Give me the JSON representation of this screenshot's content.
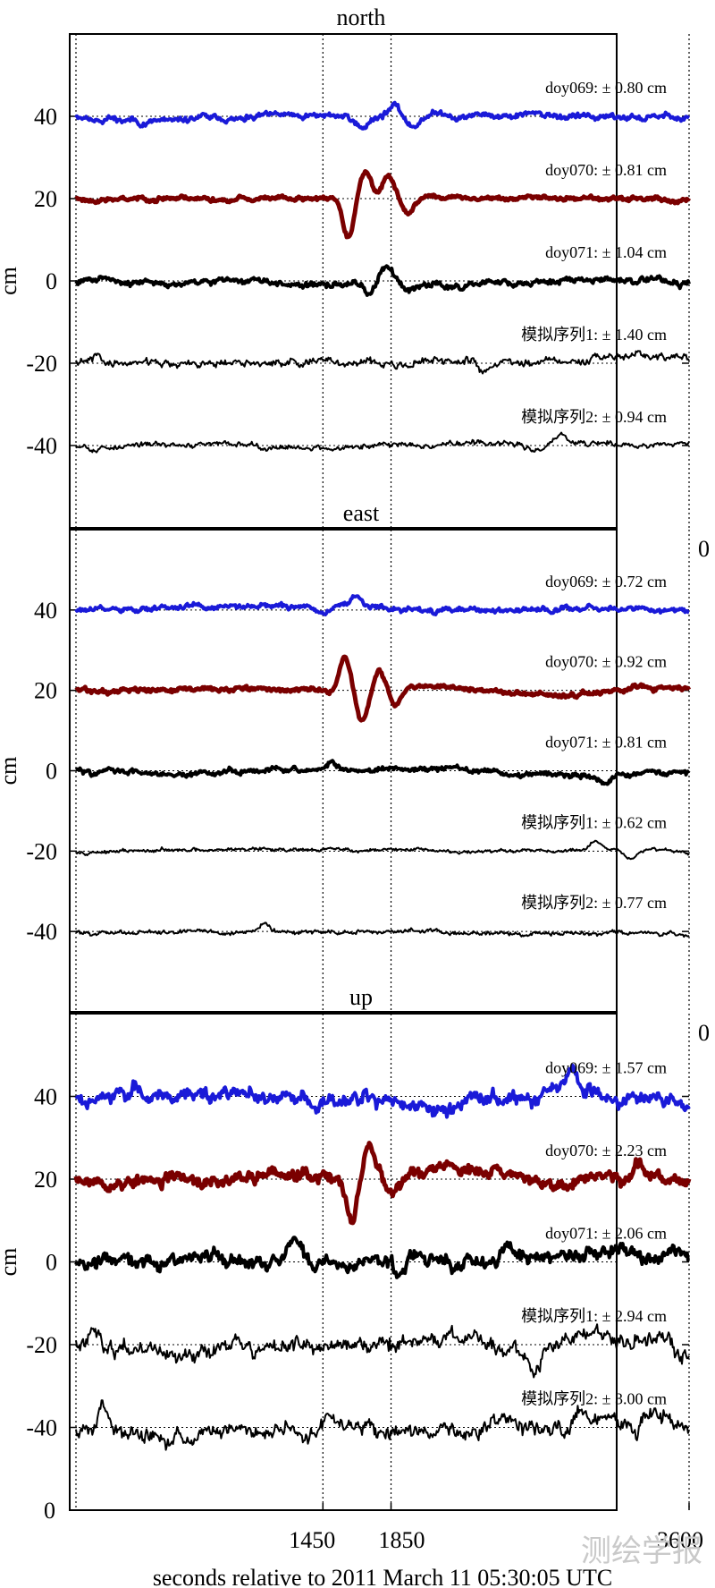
{
  "chart_data": [
    {
      "type": "line",
      "title": "north",
      "ylabel": "cm",
      "xlim": [
        0,
        3600
      ],
      "ylim": [
        -60,
        60
      ],
      "yticks": [
        40,
        20,
        0,
        -20,
        -40
      ],
      "x_ref_lines": [
        1450,
        1850
      ],
      "series": [
        {
          "name": "doy069",
          "label": "doy069: ± 0.80 cm",
          "color": "#1a1ad8",
          "offset": 40,
          "amp": 1.0,
          "width": 4,
          "seed": 11,
          "events": [
            {
              "x": 1680,
              "a": -3
            },
            {
              "x": 1860,
              "a": 3
            },
            {
              "x": 1980,
              "a": -2.5
            }
          ]
        },
        {
          "name": "doy070",
          "label": "doy070: ± 0.81 cm",
          "color": "#7a0000",
          "offset": 20,
          "amp": 0.7,
          "width": 5,
          "seed": 23,
          "events": [
            {
              "x": 1600,
              "a": -10
            },
            {
              "x": 1700,
              "a": 6
            },
            {
              "x": 1830,
              "a": 5
            },
            {
              "x": 1950,
              "a": -4
            }
          ]
        },
        {
          "name": "doy071",
          "label": "doy071: ± 1.04 cm",
          "color": "#000000",
          "offset": 0,
          "amp": 1.0,
          "width": 4,
          "seed": 31,
          "events": [
            {
              "x": 1720,
              "a": -4
            },
            {
              "x": 1820,
              "a": 3.5
            },
            {
              "x": 1950,
              "a": -2
            }
          ]
        },
        {
          "name": "模拟序列1",
          "label": "模拟序列1: ± 1.40 cm",
          "color": "#000000",
          "offset": -20,
          "amp": 1.3,
          "width": 2,
          "seed": 41,
          "events": [
            {
              "x": 120,
              "a": 2
            },
            {
              "x": 2400,
              "a": -2
            }
          ]
        },
        {
          "name": "模拟序列2",
          "label": "模拟序列2: ± 0.94 cm",
          "color": "#000000",
          "offset": -40,
          "amp": 0.9,
          "width": 2,
          "seed": 53,
          "events": [
            {
              "x": 2700,
              "a": -2
            },
            {
              "x": 2850,
              "a": 2.5
            }
          ]
        }
      ]
    },
    {
      "type": "line",
      "title": "east",
      "ylabel": "cm",
      "xlim": [
        0,
        3600
      ],
      "ylim": [
        -60,
        60
      ],
      "yticks": [
        40,
        20,
        0,
        -20,
        -40
      ],
      "x_ref_lines": [
        1450,
        1850
      ],
      "edge_label": "0",
      "series": [
        {
          "name": "doy069",
          "label": "doy069: ± 0.72 cm",
          "color": "#1a1ad8",
          "offset": 40,
          "amp": 0.9,
          "width": 4,
          "seed": 61,
          "events": [
            {
              "x": 1450,
              "a": -2
            },
            {
              "x": 1650,
              "a": 2
            }
          ]
        },
        {
          "name": "doy070",
          "label": "doy070: ± 0.92 cm",
          "color": "#7a0000",
          "offset": 20,
          "amp": 0.8,
          "width": 5,
          "seed": 71,
          "events": [
            {
              "x": 1580,
              "a": 8
            },
            {
              "x": 1680,
              "a": -8
            },
            {
              "x": 1780,
              "a": 5
            },
            {
              "x": 1880,
              "a": -4
            }
          ]
        },
        {
          "name": "doy071",
          "label": "doy071: ± 0.81 cm",
          "color": "#000000",
          "offset": 0,
          "amp": 0.9,
          "width": 4,
          "seed": 83,
          "events": [
            {
              "x": 1500,
              "a": 2
            },
            {
              "x": 3100,
              "a": -2
            }
          ]
        },
        {
          "name": "模拟序列1",
          "label": "模拟序列1: ± 0.62 cm",
          "color": "#000000",
          "offset": -20,
          "amp": 0.6,
          "width": 2,
          "seed": 97,
          "events": [
            {
              "x": 3050,
              "a": 2
            },
            {
              "x": 3250,
              "a": -2
            }
          ]
        },
        {
          "name": "模拟序列2",
          "label": "模拟序列2: ± 0.77 cm",
          "color": "#000000",
          "offset": -40,
          "amp": 0.7,
          "width": 2,
          "seed": 101,
          "events": [
            {
              "x": 1100,
              "a": 2.5
            }
          ]
        }
      ]
    },
    {
      "type": "line",
      "title": "up",
      "ylabel": "cm",
      "xlim": [
        0,
        3600
      ],
      "ylim": [
        -60,
        60
      ],
      "yticks": [
        40,
        20,
        0,
        -20,
        -40
      ],
      "x_ref_lines": [
        1450,
        1850
      ],
      "edge_label": "0",
      "series": [
        {
          "name": "doy069",
          "label": "doy069: ± 1.57 cm",
          "color": "#1a1ad8",
          "offset": 40,
          "amp": 2.4,
          "width": 4,
          "seed": 111,
          "events": [
            {
              "x": 2300,
              "a": 3
            },
            {
              "x": 2900,
              "a": 3
            }
          ]
        },
        {
          "name": "doy070",
          "label": "doy070: ± 2.23 cm",
          "color": "#7a0000",
          "offset": 20,
          "amp": 2.0,
          "width": 5,
          "seed": 127,
          "events": [
            {
              "x": 1620,
              "a": -12
            },
            {
              "x": 1720,
              "a": 7
            },
            {
              "x": 1860,
              "a": -5
            },
            {
              "x": 3300,
              "a": 4
            }
          ]
        },
        {
          "name": "doy071",
          "label": "doy071: ± 2.06 cm",
          "color": "#000000",
          "offset": 0,
          "amp": 2.3,
          "width": 4,
          "seed": 131,
          "events": [
            {
              "x": 1300,
              "a": 4
            },
            {
              "x": 1900,
              "a": -5
            }
          ]
        },
        {
          "name": "模拟序列1",
          "label": "模拟序列1: ± 2.94 cm",
          "color": "#000000",
          "offset": -20,
          "amp": 2.6,
          "width": 2,
          "seed": 149,
          "events": [
            {
              "x": 100,
              "a": 4
            },
            {
              "x": 2700,
              "a": -5
            }
          ]
        },
        {
          "name": "模拟序列2",
          "label": "模拟序列2: ± 3.00 cm",
          "color": "#000000",
          "offset": -40,
          "amp": 2.6,
          "width": 2,
          "seed": 157,
          "events": [
            {
              "x": 150,
              "a": 6
            },
            {
              "x": 2950,
              "a": 5
            },
            {
              "x": 3300,
              "a": -4
            }
          ]
        }
      ]
    }
  ],
  "x_axis": {
    "tick_labels": [
      "1450",
      "1850",
      "3600"
    ],
    "tick_values": [
      1450,
      1850,
      3600
    ],
    "xlabel": "seconds relative to 2011 March 11 05:30:05 UTC"
  },
  "bottom_tick": "0",
  "watermark": "测绘学报"
}
